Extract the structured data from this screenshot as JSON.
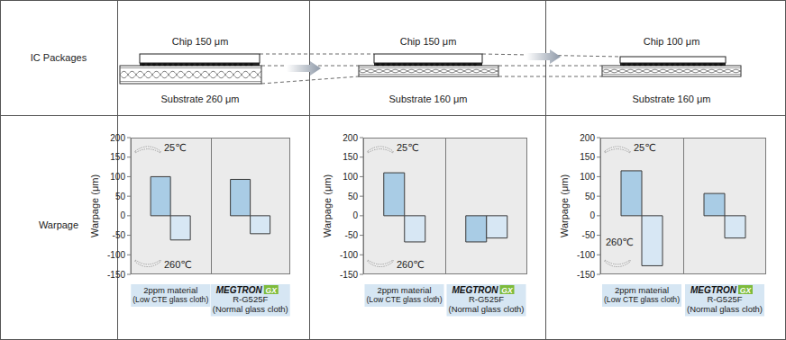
{
  "row_labels": [
    "IC Packages",
    "Warpage"
  ],
  "packages": [
    {
      "chip": "Chip 150 μm",
      "substrate": "Substrate 260 μm"
    },
    {
      "chip": "Chip 150 μm",
      "substrate": "Substrate 160 μm"
    },
    {
      "chip": "Chip 100 μm",
      "substrate": "Substrate 160 μm"
    }
  ],
  "chart_data": [
    {
      "type": "bar",
      "ylabel": "Warpage (μm)",
      "categories": [
        [
          "2ppm material",
          "(Low CTE glass cloth)"
        ],
        [
          "MEGTRON GX",
          "R-G525F",
          "(Normal glass cloth)"
        ]
      ],
      "series": [
        {
          "name": "25℃",
          "color": "#a9cce5",
          "values": [
            100,
            93
          ]
        },
        {
          "name": "260℃",
          "color": "#d7e7f4",
          "values": [
            -62,
            -46
          ]
        }
      ],
      "ylim": [
        -150,
        200
      ],
      "yticks": [
        -150,
        -100,
        -50,
        0,
        50,
        100,
        150,
        200
      ],
      "grid": false
    },
    {
      "type": "bar",
      "ylabel": "Warpage (μm)",
      "categories": [
        [
          "2ppm material",
          "(Low CTE glass cloth)"
        ],
        [
          "MEGTRON GX",
          "R-G525F",
          "(Normal glass cloth)"
        ]
      ],
      "series": [
        {
          "name": "25℃",
          "color": "#a9cce5",
          "values": [
            110,
            -67
          ]
        },
        {
          "name": "260℃",
          "color": "#d7e7f4",
          "values": [
            -67,
            -57
          ]
        }
      ],
      "ylim": [
        -150,
        200
      ],
      "yticks": [
        -150,
        -100,
        -50,
        0,
        50,
        100,
        150,
        200
      ],
      "grid": false
    },
    {
      "type": "bar",
      "ylabel": "Warpage (μm)",
      "categories": [
        [
          "2ppm material",
          "(Low CTE glass cloth)"
        ],
        [
          "MEGTRON GX",
          "R-G525F",
          "(Normal glass cloth)"
        ]
      ],
      "series": [
        {
          "name": "25℃",
          "color": "#a9cce5",
          "values": [
            115,
            57
          ]
        },
        {
          "name": "260℃",
          "color": "#d7e7f4",
          "values": [
            -128,
            -57
          ]
        }
      ],
      "ylim": [
        -150,
        200
      ],
      "yticks": [
        -150,
        -100,
        -50,
        0,
        50,
        100,
        150,
        200
      ],
      "grid": false
    }
  ]
}
